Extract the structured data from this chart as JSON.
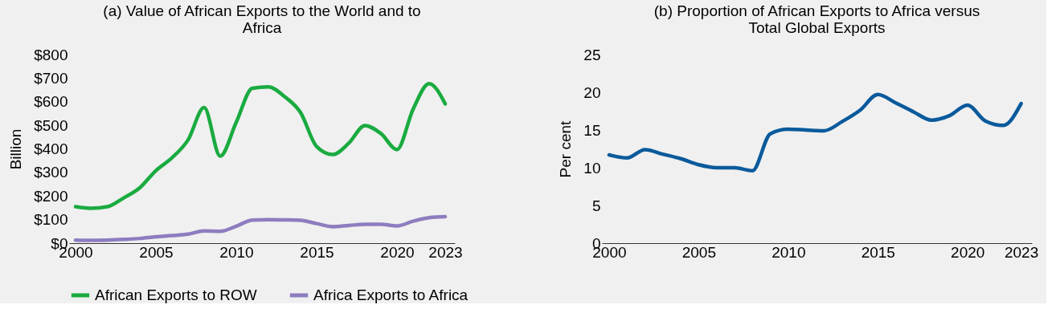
{
  "chart_data": [
    {
      "type": "line",
      "title": "(a) Value of African Exports to the World and to Africa",
      "ylabel": "Billion",
      "x": [
        2000,
        2001,
        2002,
        2003,
        2004,
        2005,
        2006,
        2007,
        2008,
        2009,
        2010,
        2011,
        2012,
        2013,
        2014,
        2015,
        2016,
        2017,
        2018,
        2019,
        2020,
        2021,
        2022,
        2023
      ],
      "series": [
        {
          "name": "African Exports to ROW",
          "color": "#1aab40",
          "values": [
            155,
            148,
            155,
            192,
            235,
            308,
            362,
            438,
            575,
            369,
            513,
            657,
            663,
            622,
            554,
            410,
            376,
            424,
            499,
            465,
            397,
            568,
            677,
            591
          ]
        },
        {
          "name": "Africa Exports to Africa",
          "color": "#8d7dbf",
          "values": [
            13,
            12,
            13,
            16,
            20,
            27,
            32,
            38,
            52,
            50,
            72,
            98,
            100,
            99,
            97,
            83,
            70,
            75,
            80,
            80,
            73,
            93,
            108,
            112
          ]
        }
      ],
      "xlim": [
        1999.6,
        2023.6
      ],
      "xticks": [
        2000,
        2005,
        2010,
        2015,
        2020,
        2023
      ],
      "ylim": [
        0,
        800
      ],
      "yticks": [
        {
          "value": 0,
          "label": "$0"
        },
        {
          "value": 100,
          "label": "$100"
        },
        {
          "value": 200,
          "label": "$200"
        },
        {
          "value": 300,
          "label": "$300"
        },
        {
          "value": 400,
          "label": "$400"
        },
        {
          "value": 500,
          "label": "$500"
        },
        {
          "value": 600,
          "label": "$600"
        },
        {
          "value": 700,
          "label": "$700"
        },
        {
          "value": 800,
          "label": "$800"
        }
      ],
      "grid": false,
      "legend": "bottom",
      "marker": "none",
      "line_style": "solid"
    },
    {
      "type": "line",
      "title": "(b) Proportion of African Exports to Africa versus Total Global Exports",
      "ylabel": "Per cent",
      "x": [
        2000,
        2001,
        2002,
        2003,
        2004,
        2005,
        2006,
        2007,
        2008,
        2009,
        2010,
        2011,
        2012,
        2013,
        2014,
        2015,
        2016,
        2017,
        2018,
        2019,
        2020,
        2021,
        2022,
        2023
      ],
      "series": [
        {
          "color": "#0a5a9c",
          "values": [
            11.7,
            11.3,
            12.4,
            11.8,
            11.2,
            10.4,
            10.0,
            10.0,
            9.6,
            14.5,
            15.1,
            15.0,
            14.9,
            16.1,
            17.6,
            19.7,
            18.6,
            17.4,
            16.3,
            16.9,
            18.3,
            16.2,
            15.6,
            18.5
          ]
        }
      ],
      "xlim": [
        1999.6,
        2023.6
      ],
      "xticks": [
        2000,
        2005,
        2010,
        2015,
        2020,
        2023
      ],
      "ylim": [
        0,
        25
      ],
      "yticks": [
        0,
        5,
        10,
        15,
        20,
        25
      ],
      "grid": false,
      "legend": false,
      "marker": "none",
      "line_style": "solid"
    }
  ]
}
